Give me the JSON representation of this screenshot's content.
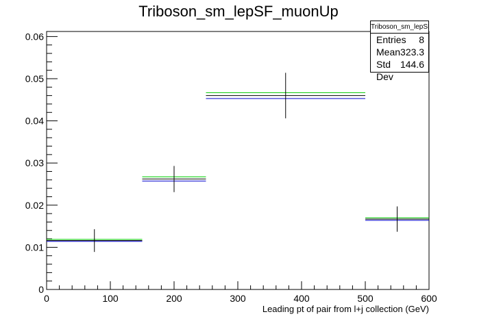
{
  "chart_data": {
    "type": "histogram",
    "title": "Triboson_sm_lepSF_muonUp",
    "xlabel": "Leading pt of pair from l+j collection (GeV)",
    "ylabel": "",
    "xlim": [
      0,
      600
    ],
    "ylim": [
      0,
      0.0612
    ],
    "xticks": [
      0,
      100,
      200,
      300,
      400,
      500,
      600
    ],
    "yticks": [
      0,
      0.01,
      0.02,
      0.03,
      0.04,
      0.05,
      0.06
    ],
    "ytick_labels": [
      "0",
      "0.01",
      "0.02",
      "0.03",
      "0.04",
      "0.05",
      "0.06"
    ],
    "bins": [
      {
        "xlow": 0,
        "xhigh": 150,
        "x": 75,
        "y": 0.0116,
        "err": 0.0027,
        "y_green": 0.0119,
        "y_blue": 0.0114
      },
      {
        "xlow": 150,
        "xhigh": 250,
        "x": 200,
        "y": 0.0262,
        "err": 0.0031,
        "y_green": 0.0267,
        "y_blue": 0.0257
      },
      {
        "xlow": 250,
        "xhigh": 500,
        "x": 375,
        "y": 0.046,
        "err": 0.0054,
        "y_green": 0.0467,
        "y_blue": 0.0453
      },
      {
        "xlow": 500,
        "xhigh": 600,
        "x": 550,
        "y": 0.0167,
        "err": 0.003,
        "y_green": 0.017,
        "y_blue": 0.0164
      }
    ],
    "colors": {
      "nominal": "#000000",
      "up": "#00cc00",
      "down": "#0000cc"
    },
    "grid": false
  },
  "stats": {
    "title": "Triboson_sm_lepSF_muonUp",
    "rows": [
      {
        "label": "Entries",
        "value": "8"
      },
      {
        "label": "Mean",
        "value": "323.3"
      },
      {
        "label": "Std Dev",
        "value": "144.6"
      }
    ]
  }
}
